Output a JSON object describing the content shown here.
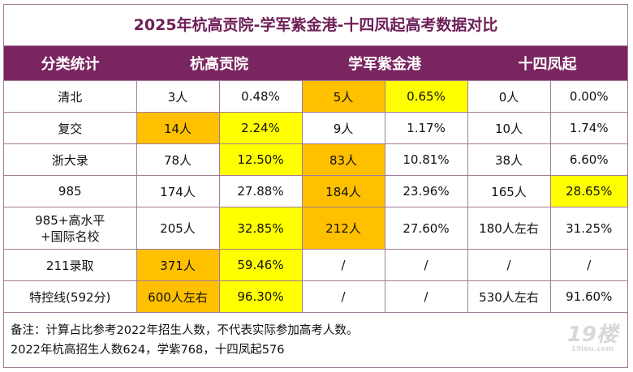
{
  "title": "2025年杭高贡院-学军紫金港-十四凤起高考数据对比",
  "headers": [
    "分类统计",
    "杭高贡院",
    "学军紫金港",
    "十四凤起"
  ],
  "rows": [
    {
      "label": "清北",
      "cells": [
        {
          "v": "3人"
        },
        {
          "v": "0.48%"
        },
        {
          "v": "5人",
          "hl": "orange"
        },
        {
          "v": "0.65%",
          "hl": "yellow"
        },
        {
          "v": "0人"
        },
        {
          "v": "0.00%"
        }
      ]
    },
    {
      "label": "复交",
      "cells": [
        {
          "v": "14人",
          "hl": "orange"
        },
        {
          "v": "2.24%",
          "hl": "yellow"
        },
        {
          "v": "9人"
        },
        {
          "v": "1.17%"
        },
        {
          "v": "10人"
        },
        {
          "v": "1.74%"
        }
      ]
    },
    {
      "label": "浙大录",
      "cells": [
        {
          "v": "78人"
        },
        {
          "v": "12.50%",
          "hl": "yellow"
        },
        {
          "v": "83人",
          "hl": "orange"
        },
        {
          "v": "10.81%"
        },
        {
          "v": "38人"
        },
        {
          "v": "6.60%"
        }
      ]
    },
    {
      "label": "985",
      "cells": [
        {
          "v": "174人"
        },
        {
          "v": "27.88%"
        },
        {
          "v": "184人",
          "hl": "orange"
        },
        {
          "v": "23.96%"
        },
        {
          "v": "165人"
        },
        {
          "v": "28.65%",
          "hl": "yellow"
        }
      ]
    },
    {
      "label": "985+高水平+国际名校",
      "label_lines": [
        "985+高水平+",
        "国际名校"
      ],
      "tall": true,
      "cells": [
        {
          "v": "205人"
        },
        {
          "v": "32.85%",
          "hl": "yellow"
        },
        {
          "v": "212人",
          "hl": "orange"
        },
        {
          "v": "27.60%"
        },
        {
          "v": "180人左右"
        },
        {
          "v": "31.25%"
        }
      ]
    },
    {
      "label": "211录取",
      "cells": [
        {
          "v": "371人",
          "hl": "orange"
        },
        {
          "v": "59.46%",
          "hl": "yellow"
        },
        {
          "v": "/"
        },
        {
          "v": "/"
        },
        {
          "v": "/"
        },
        {
          "v": "/"
        }
      ]
    },
    {
      "label": "特控线(592分)",
      "cells": [
        {
          "v": "600人左右",
          "hl": "orange"
        },
        {
          "v": "96.30%",
          "hl": "yellow"
        },
        {
          "v": "/"
        },
        {
          "v": "/"
        },
        {
          "v": "530人左右"
        },
        {
          "v": "91.60%"
        }
      ]
    }
  ],
  "footer": {
    "note": "备注：计算占比参考2022年招生人数，不代表实际参加高考人数。",
    "enrollment": "2022年杭高招生人数624，学紫768，十四凤起576"
  },
  "watermark": {
    "logo": "19楼",
    "site": "19lou.com"
  },
  "colors": {
    "header": "#7b2560",
    "title": "#6e1f57",
    "orange": "#ffc000",
    "yellow": "#ffff00"
  }
}
